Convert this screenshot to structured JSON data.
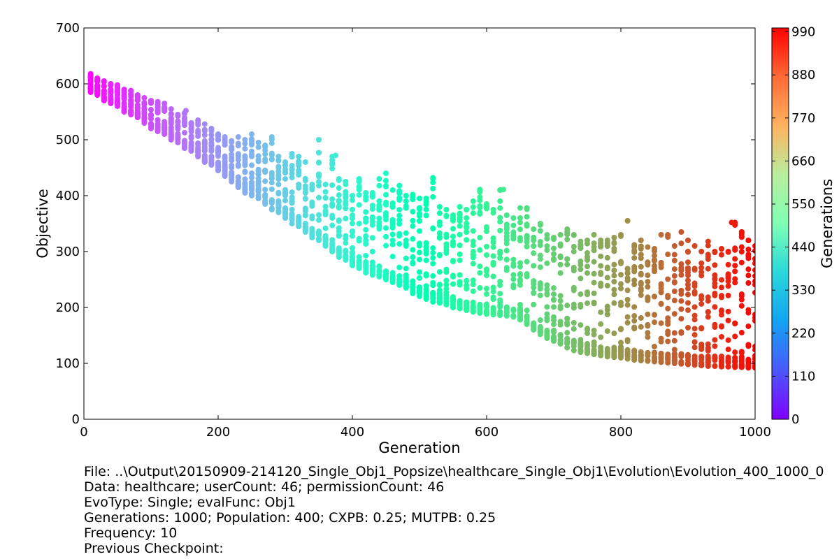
{
  "chart_data": {
    "type": "scatter",
    "title": "",
    "xlabel": "Generation",
    "ylabel": "Objective",
    "xlim": [
      0,
      1000
    ],
    "ylim": [
      0,
      700
    ],
    "x_ticks": [
      "0",
      "200",
      "400",
      "600",
      "800",
      "1000"
    ],
    "y_ticks": [
      "0",
      "100",
      "200",
      "300",
      "400",
      "500",
      "600",
      "700"
    ],
    "grid": false,
    "colorbar": {
      "label": "Generations",
      "colormap": "rainbow",
      "range": [
        0,
        1000
      ],
      "ticks": [
        "0",
        "110",
        "220",
        "330",
        "440",
        "550",
        "660",
        "770",
        "880",
        "990"
      ]
    },
    "series": [
      {
        "x": [
          10,
          20,
          30,
          40,
          50,
          60,
          70,
          80,
          90,
          100,
          110,
          120,
          130,
          140,
          150,
          160,
          170,
          180,
          190,
          200,
          210,
          220,
          230,
          240,
          250,
          260,
          270,
          280,
          290,
          300,
          310,
          320,
          330,
          340,
          350,
          360,
          370,
          380,
          390,
          400,
          410,
          420,
          430,
          440,
          450,
          460,
          470,
          480,
          490,
          500,
          510,
          520,
          530,
          540,
          550,
          560,
          570,
          580,
          590,
          600,
          610,
          620,
          630,
          640,
          650,
          660,
          670,
          680,
          690,
          700,
          710,
          720,
          730,
          740,
          750,
          760,
          770,
          780,
          790,
          800,
          810,
          820,
          830,
          840,
          850,
          860,
          870,
          880,
          890,
          900,
          910,
          920,
          930,
          940,
          950,
          960,
          970,
          980,
          990,
          1000
        ],
        "y_min": [
          585,
          580,
          570,
          565,
          560,
          550,
          545,
          540,
          530,
          520,
          515,
          510,
          500,
          495,
          485,
          480,
          470,
          460,
          455,
          445,
          435,
          425,
          415,
          405,
          400,
          395,
          385,
          375,
          370,
          360,
          350,
          345,
          335,
          325,
          320,
          310,
          300,
          290,
          285,
          275,
          270,
          262,
          258,
          255,
          250,
          245,
          240,
          235,
          225,
          220,
          215,
          210,
          208,
          205,
          200,
          198,
          195,
          192,
          190,
          188,
          187,
          186,
          185,
          183,
          178,
          170,
          160,
          152,
          145,
          140,
          135,
          128,
          123,
          120,
          118,
          116,
          114,
          112,
          111,
          110,
          108,
          106,
          105,
          104,
          103,
          102,
          101,
          100,
          99,
          98,
          97,
          96,
          95,
          95,
          94,
          94,
          93,
          93,
          92,
          92
        ],
        "y_max": [
          618,
          610,
          605,
          600,
          598,
          590,
          588,
          580,
          575,
          570,
          568,
          565,
          555,
          545,
          548,
          530,
          535,
          528,
          520,
          510,
          505,
          498,
          505,
          500,
          510,
          495,
          490,
          505,
          470,
          460,
          475,
          470,
          460,
          420,
          500,
          420,
          470,
          430,
          425,
          400,
          430,
          405,
          405,
          430,
          440,
          410,
          418,
          400,
          402,
          395,
          395,
          430,
          380,
          375,
          365,
          380,
          375,
          390,
          410,
          385,
          375,
          410,
          365,
          360,
          360,
          378,
          340,
          350,
          330,
          325,
          330,
          340,
          330,
          318,
          320,
          330,
          320,
          320,
          325,
          330,
          355,
          312,
          320,
          308,
          305,
          330,
          330,
          310,
          335,
          320,
          310,
          300,
          318,
          300,
          305,
          300,
          352,
          335,
          320,
          310
        ],
        "outlier_points": [
          [
            152,
            552
          ],
          [
            350,
            500
          ],
          [
            375,
            472
          ],
          [
            520,
            432
          ],
          [
            590,
            411
          ],
          [
            625,
            411
          ],
          [
            650,
            378
          ],
          [
            810,
            355
          ],
          [
            965,
            352
          ],
          [
            980,
            335
          ],
          [
            760,
            138
          ],
          [
            980,
            112
          ]
        ]
      }
    ]
  },
  "footer": {
    "file": "File: ..\\Output\\20150909-214120_Single_Obj1_Popsize\\healthcare_Single_Obj1\\Evolution\\Evolution_400_1000_0",
    "data": "Data: healthcare; userCount: 46; permissionCount: 46",
    "evotype": "EvoType: Single; evalFunc: Obj1",
    "generations": "Generations: 1000; Population: 400; CXPB: 0.25; MUTPB: 0.25",
    "frequency": "Frequency: 10",
    "checkpoint": "Previous Checkpoint:"
  }
}
